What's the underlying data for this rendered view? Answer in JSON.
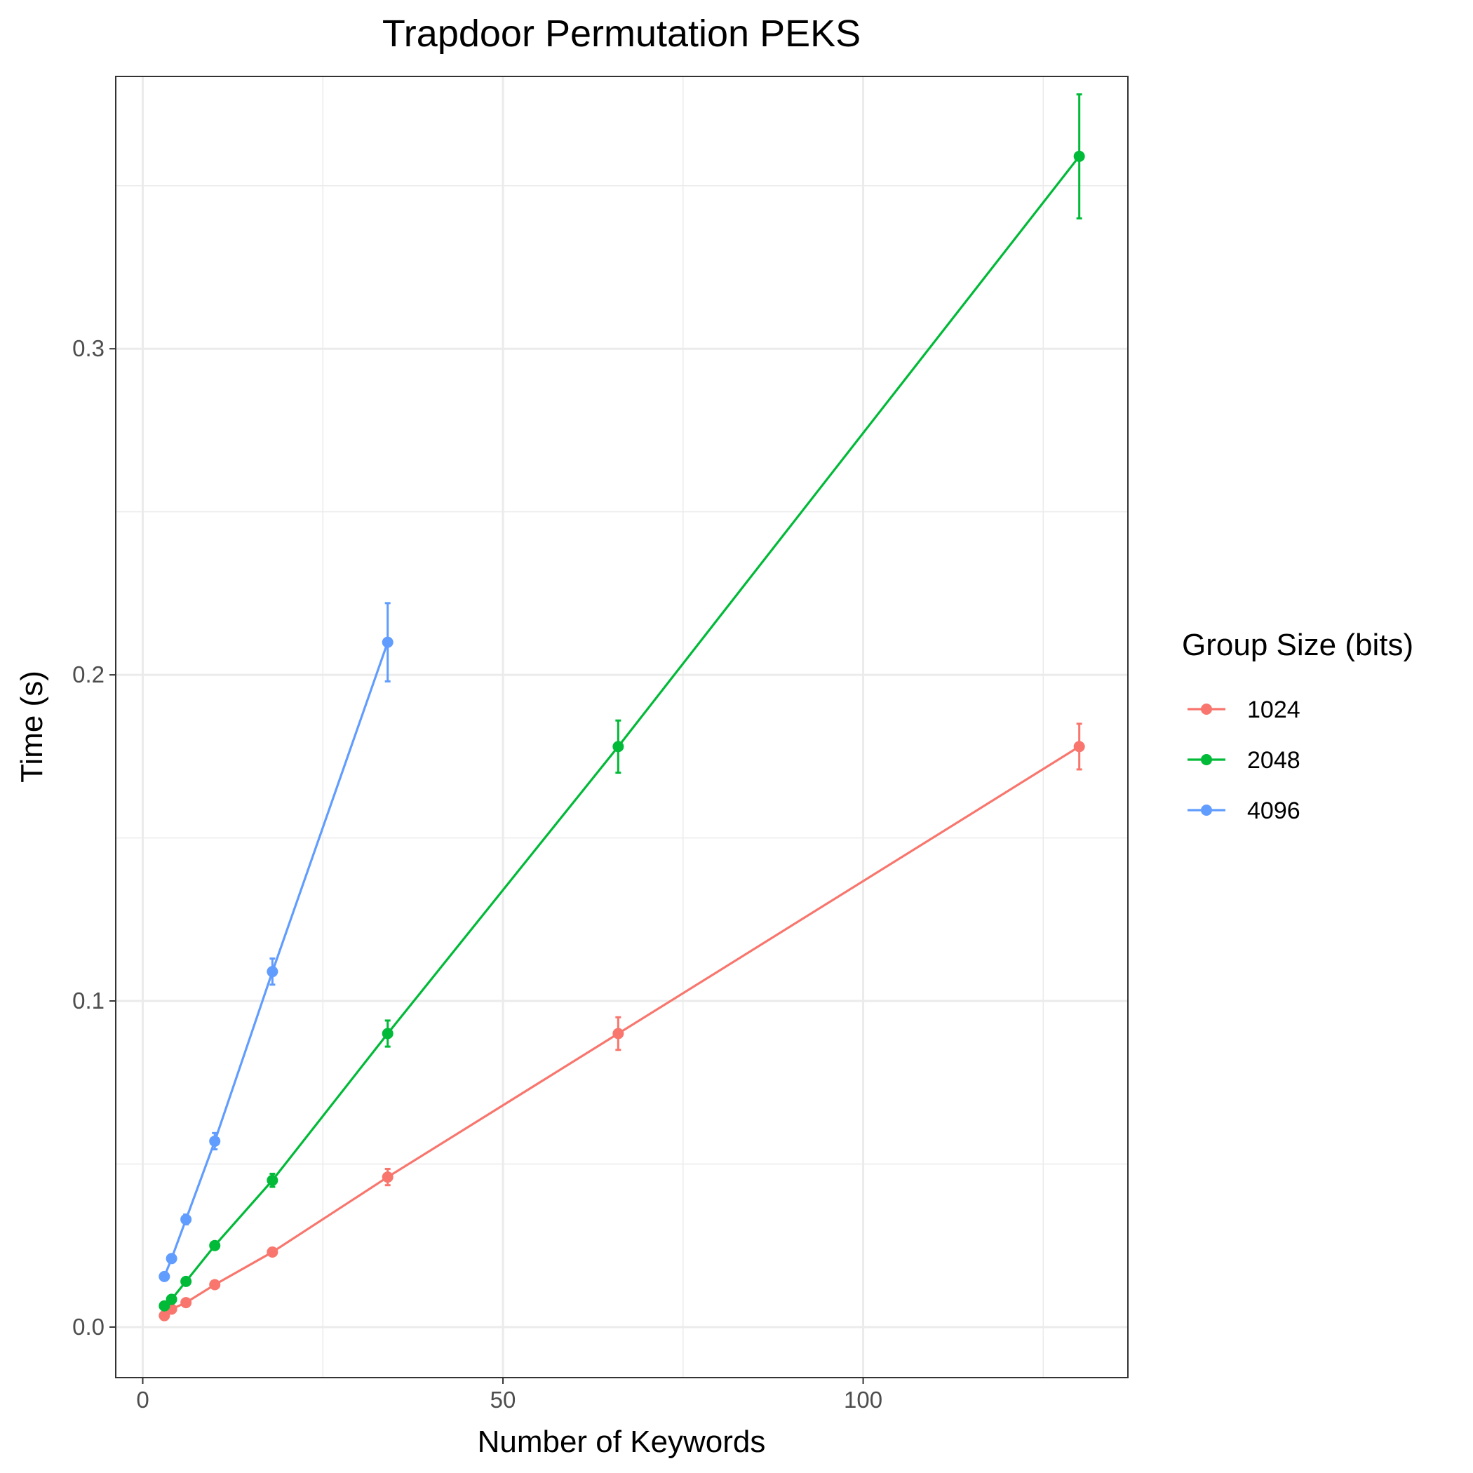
{
  "chart_data": {
    "type": "line",
    "title": "Trapdoor Permutation PEKS",
    "xlabel": "Number of Keywords",
    "ylabel": "Time (s)",
    "xlim": [
      -3.75,
      136.75
    ],
    "ylim": [
      -0.0155,
      0.3835
    ],
    "x_ticks": [
      0,
      50,
      100
    ],
    "x_tick_labels": [
      "0",
      "50",
      "100"
    ],
    "x_minor_ticks": [
      25,
      75,
      125
    ],
    "y_ticks": [
      0.0,
      0.1,
      0.2,
      0.3
    ],
    "y_tick_labels": [
      "0.0",
      "0.1",
      "0.2",
      "0.3"
    ],
    "y_minor_ticks": [
      0.05,
      0.15,
      0.25,
      0.35
    ],
    "grid": true,
    "error_bars": true,
    "legend": {
      "title": "Group Size (bits)",
      "position": "right"
    },
    "series": [
      {
        "name": "1024",
        "color": "#F8766D",
        "x": [
          3,
          4,
          6,
          10,
          18,
          34,
          66,
          130
        ],
        "y": [
          0.0035,
          0.0055,
          0.0075,
          0.013,
          0.023,
          0.046,
          0.09,
          0.178
        ],
        "err": [
          0.0005,
          0.0005,
          0.0006,
          0.0008,
          0.001,
          0.0025,
          0.005,
          0.007
        ]
      },
      {
        "name": "2048",
        "color": "#00BA38",
        "x": [
          3,
          4,
          6,
          10,
          18,
          34,
          66,
          130
        ],
        "y": [
          0.0065,
          0.0085,
          0.014,
          0.025,
          0.045,
          0.09,
          0.178,
          0.359
        ],
        "err": [
          0.0005,
          0.0006,
          0.0008,
          0.001,
          0.002,
          0.004,
          0.008,
          0.019
        ]
      },
      {
        "name": "4096",
        "color": "#619CFF",
        "x": [
          3,
          4,
          6,
          10,
          18,
          34
        ],
        "y": [
          0.0155,
          0.021,
          0.033,
          0.057,
          0.109,
          0.21
        ],
        "err": [
          0.0008,
          0.001,
          0.0015,
          0.0025,
          0.004,
          0.012
        ]
      }
    ]
  }
}
